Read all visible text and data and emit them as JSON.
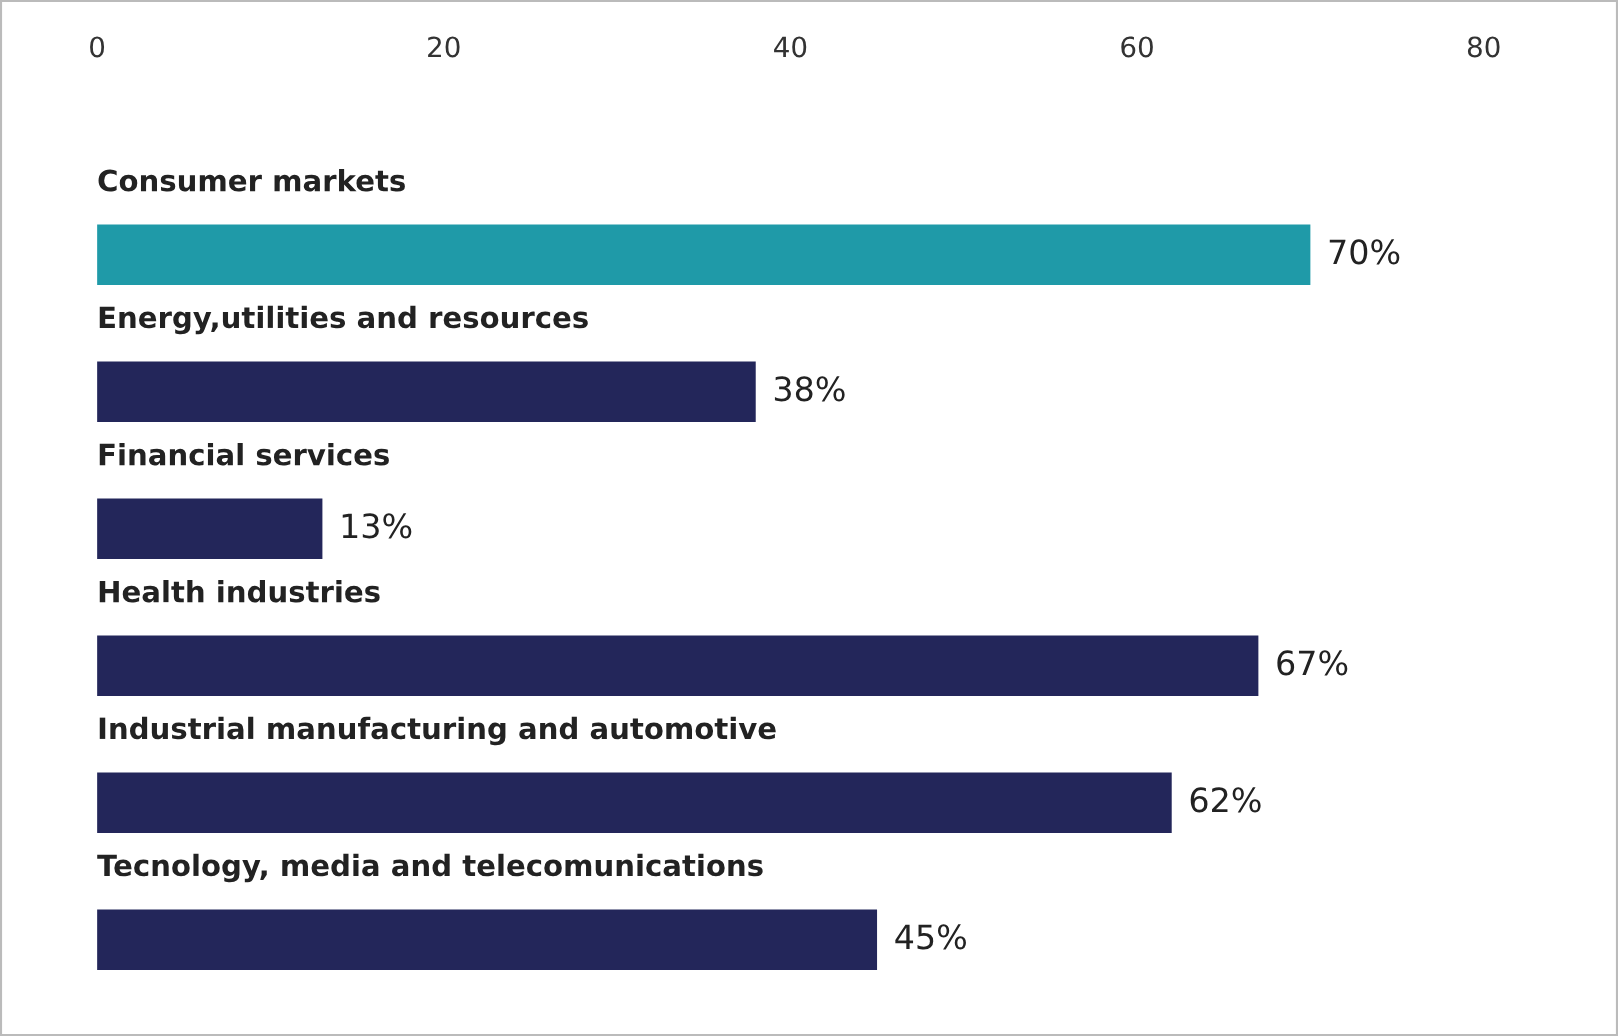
{
  "chart_data": {
    "type": "bar",
    "orientation": "horizontal",
    "categories": [
      "Consumer markets",
      "Energy,utilities and resources",
      "Financial services",
      "Health industries",
      "Industrial manufacturing and automotive",
      "Tecnology, media and telecomunications"
    ],
    "values": [
      70,
      38,
      13,
      67,
      62,
      45
    ],
    "colors": [
      "#1f9aa8",
      "#23265a",
      "#23265a",
      "#23265a",
      "#23265a",
      "#23265a"
    ],
    "value_labels": [
      "70%",
      "38%",
      "13%",
      "67%",
      "62%",
      "45%"
    ],
    "xlim": [
      0,
      80
    ],
    "xticks": [
      0,
      20,
      40,
      60,
      80
    ],
    "grid": false,
    "legend": false
  }
}
